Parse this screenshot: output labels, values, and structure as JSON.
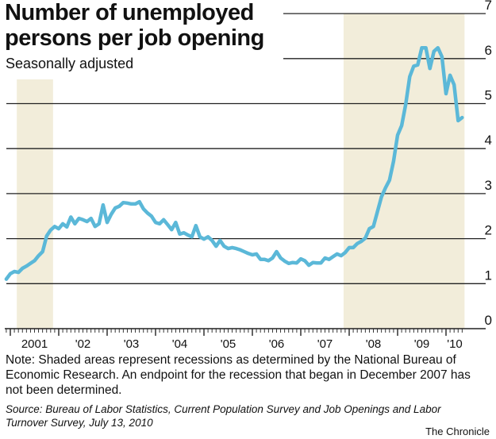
{
  "chart_data": {
    "type": "line",
    "title": "Number of unemployed persons per job opening",
    "subtitle": "Seasonally adjusted",
    "xlabel": "",
    "ylabel": "",
    "ylim": [
      0,
      7
    ],
    "yticks": [
      "0",
      "1",
      "2",
      "3",
      "4",
      "5",
      "6",
      "7"
    ],
    "xtick_labels": [
      {
        "year": 2001,
        "label": "2001"
      },
      {
        "year": 2002,
        "label": "'02"
      },
      {
        "year": 2003,
        "label": "'03"
      },
      {
        "year": 2004,
        "label": "'04"
      },
      {
        "year": 2005,
        "label": "'05"
      },
      {
        "year": 2006,
        "label": "'06"
      },
      {
        "year": 2007,
        "label": "'07"
      },
      {
        "year": 2008,
        "label": "'08"
      },
      {
        "year": 2009,
        "label": "'09"
      },
      {
        "year": 2010,
        "label": "'10"
      }
    ],
    "grid": true,
    "line_color": "#5bb8d8",
    "recession_color": "#f2edda",
    "recessions": [
      {
        "start": "2001-03",
        "end": "2001-11"
      },
      {
        "start": "2007-12",
        "end": "2010-05"
      }
    ],
    "x": [
      "2000-12",
      "2001-01",
      "2001-02",
      "2001-03",
      "2001-04",
      "2001-05",
      "2001-06",
      "2001-07",
      "2001-08",
      "2001-09",
      "2001-10",
      "2001-11",
      "2001-12",
      "2002-01",
      "2002-02",
      "2002-03",
      "2002-04",
      "2002-05",
      "2002-06",
      "2002-07",
      "2002-08",
      "2002-09",
      "2002-10",
      "2002-11",
      "2002-12",
      "2003-01",
      "2003-02",
      "2003-03",
      "2003-04",
      "2003-05",
      "2003-06",
      "2003-07",
      "2003-08",
      "2003-09",
      "2003-10",
      "2003-11",
      "2003-12",
      "2004-01",
      "2004-02",
      "2004-03",
      "2004-04",
      "2004-05",
      "2004-06",
      "2004-07",
      "2004-08",
      "2004-09",
      "2004-10",
      "2004-11",
      "2004-12",
      "2005-01",
      "2005-02",
      "2005-03",
      "2005-04",
      "2005-05",
      "2005-06",
      "2005-07",
      "2005-08",
      "2005-09",
      "2005-10",
      "2005-11",
      "2005-12",
      "2006-01",
      "2006-02",
      "2006-03",
      "2006-04",
      "2006-05",
      "2006-06",
      "2006-07",
      "2006-08",
      "2006-09",
      "2006-10",
      "2006-11",
      "2006-12",
      "2007-01",
      "2007-02",
      "2007-03",
      "2007-04",
      "2007-05",
      "2007-06",
      "2007-07",
      "2007-08",
      "2007-09",
      "2007-10",
      "2007-11",
      "2007-12",
      "2008-01",
      "2008-02",
      "2008-03",
      "2008-04",
      "2008-05",
      "2008-06",
      "2008-07",
      "2008-08",
      "2008-09",
      "2008-10",
      "2008-11",
      "2008-12",
      "2009-01",
      "2009-02",
      "2009-03",
      "2009-04",
      "2009-05",
      "2009-06",
      "2009-07",
      "2009-08",
      "2009-09",
      "2009-10",
      "2009-11",
      "2009-12",
      "2010-01",
      "2010-02",
      "2010-03",
      "2010-04",
      "2010-05"
    ],
    "values": [
      1.1,
      1.22,
      1.27,
      1.25,
      1.34,
      1.39,
      1.45,
      1.51,
      1.62,
      1.71,
      2.06,
      2.19,
      2.27,
      2.22,
      2.33,
      2.26,
      2.48,
      2.33,
      2.45,
      2.42,
      2.38,
      2.45,
      2.27,
      2.33,
      2.75,
      2.36,
      2.54,
      2.68,
      2.72,
      2.8,
      2.79,
      2.77,
      2.77,
      2.82,
      2.66,
      2.57,
      2.5,
      2.36,
      2.33,
      2.42,
      2.31,
      2.2,
      2.36,
      2.1,
      2.13,
      2.08,
      2.04,
      2.29,
      2.04,
      1.99,
      2.04,
      1.96,
      1.83,
      1.96,
      1.83,
      1.78,
      1.8,
      1.78,
      1.75,
      1.71,
      1.67,
      1.64,
      1.66,
      1.54,
      1.54,
      1.51,
      1.57,
      1.71,
      1.57,
      1.5,
      1.45,
      1.47,
      1.46,
      1.55,
      1.51,
      1.41,
      1.47,
      1.46,
      1.46,
      1.57,
      1.54,
      1.6,
      1.66,
      1.62,
      1.69,
      1.8,
      1.8,
      1.89,
      1.94,
      2.01,
      2.22,
      2.27,
      2.6,
      2.93,
      3.13,
      3.3,
      3.72,
      4.3,
      4.51,
      4.98,
      5.6,
      5.83,
      5.86,
      6.24,
      6.24,
      5.78,
      6.16,
      6.24,
      6.04,
      5.22,
      5.63,
      5.42,
      4.62,
      4.69
    ]
  },
  "note": "Note: Shaded areas represent recessions as determined by the National Bureau of Economic Research. An endpoint for the recession that began in December 2007 has not been determined.",
  "source": "Source: Bureau of Labor Statistics, Current Population Survey and Job Openings and Labor Turnover Survey, July 13, 2010",
  "credit": "The Chronicle"
}
